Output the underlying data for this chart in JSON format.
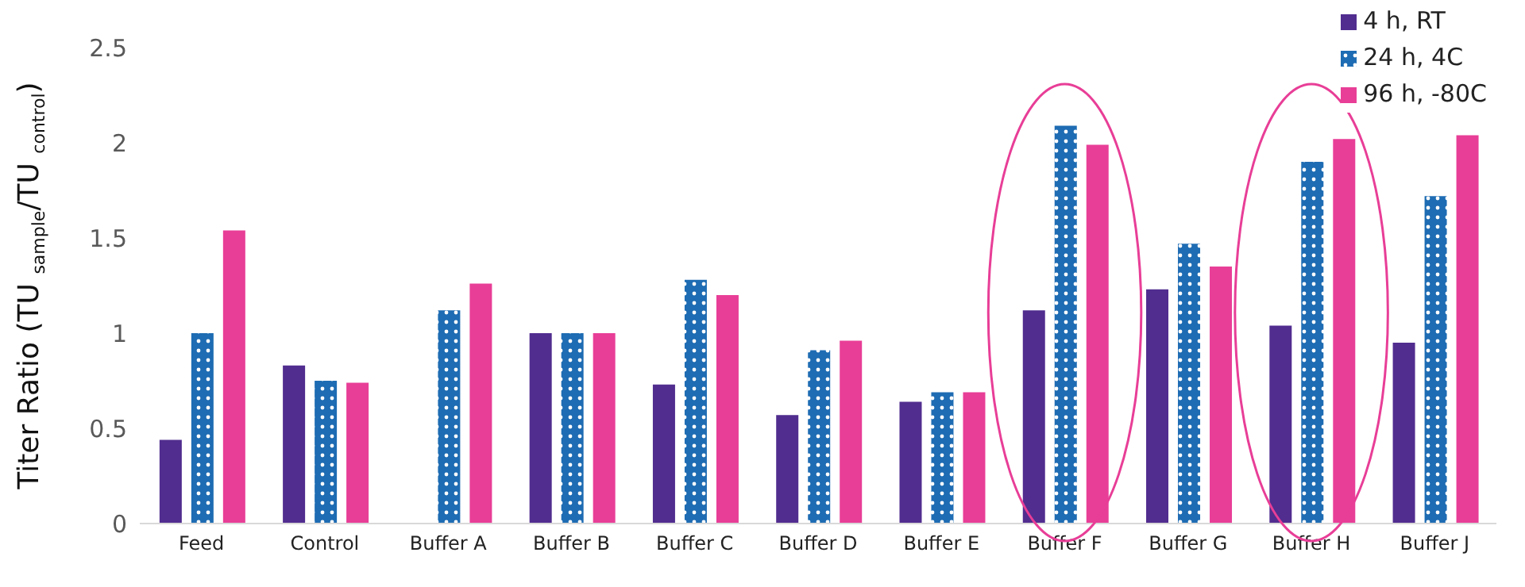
{
  "chart_data": {
    "type": "bar",
    "ylabel": "Titer Ratio (TU $_{sample}$/TU $_{control}$)",
    "categories": [
      "Feed",
      "Control",
      "Buffer A",
      "Buffer B",
      "Buffer C",
      "Buffer D",
      "Buffer E",
      "Buffer F",
      "Buffer G",
      "Buffer H",
      "Buffer J"
    ],
    "series": [
      {
        "name": "4 h, RT",
        "color": "#512d8f",
        "values": [
          0.44,
          0.83,
          null,
          1,
          0.73,
          0.57,
          0.64,
          1.12,
          1.23,
          1.04,
          0.95
        ]
      },
      {
        "name": "24 h, 4C",
        "color": "#1e6cb3",
        "values": [
          1,
          0.75,
          1.12,
          1,
          1.28,
          0.91,
          0.69,
          2.09,
          1.47,
          1.9,
          1.72
        ]
      },
      {
        "name": "96 h, -80C",
        "color": "#e83e97",
        "values": [
          1.54,
          0.74,
          1.26,
          1,
          1.2,
          0.96,
          0.69,
          1.99,
          1.35,
          2.02,
          2.04
        ]
      }
    ],
    "ylim": [
      0,
      2.5
    ],
    "yticks": [
      0,
      0.5,
      1,
      1.5,
      2,
      2.5
    ],
    "grid": false,
    "legend": "top right"
  }
}
